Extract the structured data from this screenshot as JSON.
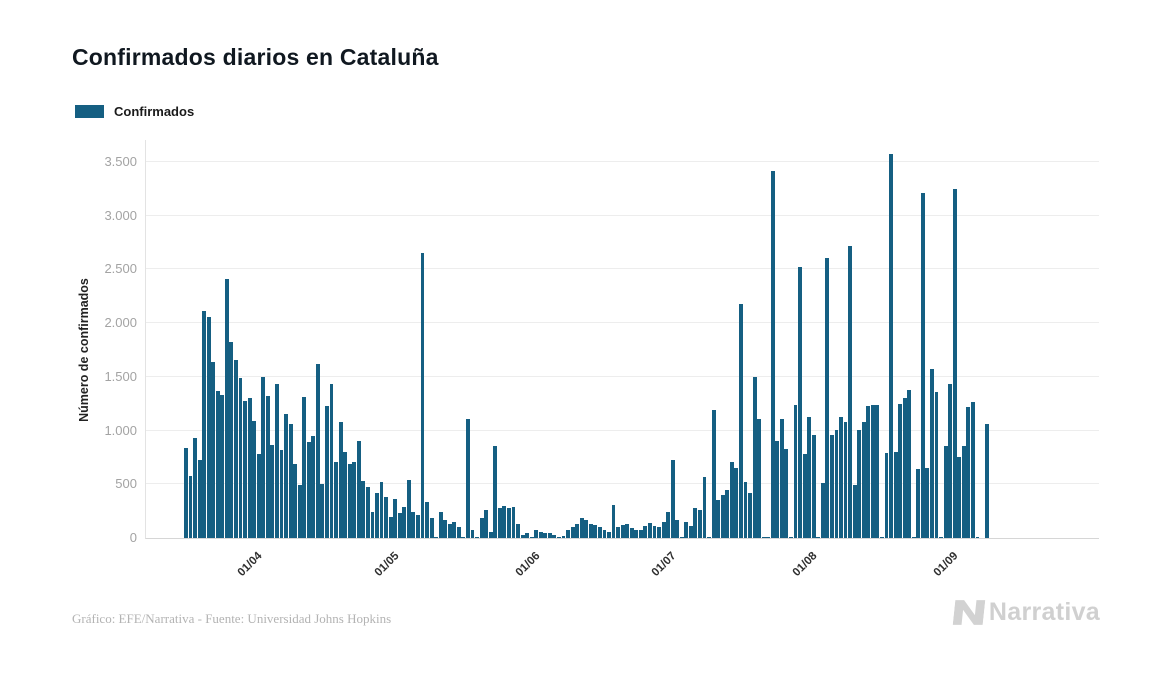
{
  "header": {
    "title": "Confirmados diarios en Cataluña"
  },
  "legend": {
    "label": "Confirmados",
    "swatch_color": "#155f82"
  },
  "icons": {
    "brand_mark": "narrativa-n-icon"
  },
  "chart_data": {
    "type": "bar",
    "title": "Confirmados diarios en Cataluña",
    "xlabel": "",
    "ylabel": "Número de confirmados",
    "ylim": [
      0,
      3500
    ],
    "grid": true,
    "legend_position": "top-left",
    "bar_color": "#155f82",
    "y_ticks": [
      {
        "value": 0,
        "label": "0"
      },
      {
        "value": 500,
        "label": "500"
      },
      {
        "value": 1000,
        "label": "1.000"
      },
      {
        "value": 1500,
        "label": "1.500"
      },
      {
        "value": 2000,
        "label": "2.000"
      },
      {
        "value": 2500,
        "label": "2.500"
      },
      {
        "value": 3000,
        "label": "3.000"
      },
      {
        "value": 3500,
        "label": "3.500"
      }
    ],
    "x_ticks": [
      {
        "label": "01/04",
        "bar_index": 13
      },
      {
        "label": "01/05",
        "bar_index": 43
      },
      {
        "label": "01/06",
        "bar_index": 74
      },
      {
        "label": "01/07",
        "bar_index": 104
      },
      {
        "label": "01/08",
        "bar_index": 135
      },
      {
        "label": "01/09",
        "bar_index": 166
      }
    ],
    "series": [
      {
        "name": "Confirmados",
        "values": [
          840,
          580,
          930,
          730,
          2110,
          2060,
          1640,
          1370,
          1330,
          2410,
          1820,
          1660,
          1490,
          1280,
          1300,
          1090,
          780,
          1500,
          1320,
          870,
          1430,
          815,
          1155,
          1060,
          690,
          495,
          1310,
          890,
          945,
          1620,
          505,
          1230,
          1430,
          705,
          1080,
          800,
          690,
          710,
          905,
          535,
          475,
          240,
          420,
          525,
          380,
          195,
          365,
          235,
          290,
          540,
          245,
          215,
          2650,
          335,
          190,
          10,
          245,
          165,
          135,
          150,
          105,
          5,
          1110,
          75,
          5,
          185,
          260,
          60,
          855,
          275,
          295,
          275,
          290,
          135,
          30,
          45,
          10,
          75,
          60,
          50,
          45,
          30,
          10,
          20,
          75,
          105,
          135,
          185,
          165,
          135,
          120,
          100,
          75,
          60,
          305,
          105,
          120,
          135,
          90,
          75,
          75,
          110,
          140,
          110,
          105,
          150,
          240,
          730,
          165,
          5,
          150,
          110,
          275,
          260,
          570,
          5,
          1195,
          355,
          405,
          445,
          710,
          650,
          2180,
          520,
          415,
          1500,
          1110,
          5,
          10,
          3420,
          905,
          1110,
          830,
          5,
          1235,
          2520,
          785,
          1130,
          955,
          5,
          510,
          2610,
          960,
          1005,
          1130,
          1080,
          2715,
          490,
          1010,
          1080,
          1225,
          1235,
          1240,
          5,
          795,
          3575,
          800,
          1250,
          1300,
          1380,
          5,
          645,
          3210,
          650,
          1570,
          1360,
          5,
          860,
          1435,
          3250,
          750,
          855,
          1220,
          1265,
          5,
          0,
          1065
        ]
      }
    ]
  },
  "footer": {
    "credit": "Gráfico: EFE/Narrativa - Fuente: Universidad Johns Hopkins",
    "brand": "Narrativa"
  }
}
